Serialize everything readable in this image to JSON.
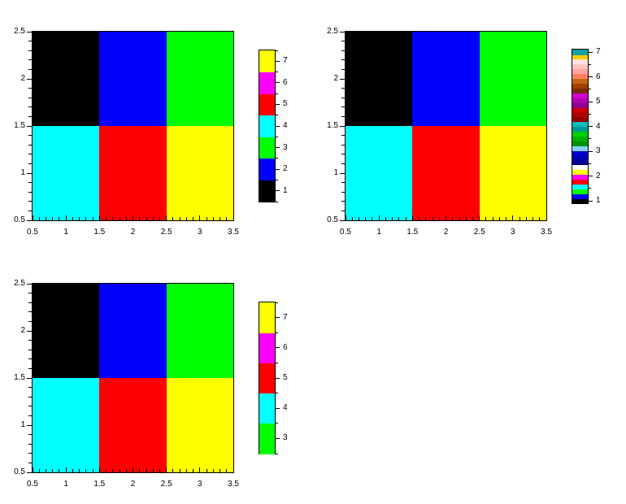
{
  "figure": {
    "background": "#FFFFFF",
    "frame_color": "#000000"
  },
  "heatmap": {
    "cell_colors_top_to_bottom": [
      [
        "#000000",
        "#0000FF",
        "#00FF00"
      ],
      [
        "#00FFFF",
        "#FF0000",
        "#FFFF00"
      ]
    ]
  },
  "axes": {
    "x_tick_labels": [
      "0.5",
      "1",
      "1.5",
      "2",
      "2.5",
      "3",
      "3.5"
    ],
    "y_tick_labels_bottom_to_top": [
      "0.5",
      "1",
      "1.5",
      "2",
      "2.5"
    ]
  },
  "colorbars": [
    {
      "kind": "segments",
      "labels_bottom_to_top": [
        "1",
        "2",
        "3",
        "4",
        "5",
        "6",
        "7"
      ],
      "colors_bottom_to_top": [
        "#000000",
        "#0000FF",
        "#00FF00",
        "#00FFFF",
        "#FF0000",
        "#FF00FF",
        "#FFFF00"
      ]
    },
    {
      "kind": "stripes",
      "labels_bottom_to_top": [
        "1",
        "2",
        "3",
        "4",
        "5",
        "6",
        "7"
      ],
      "colors_bottom_to_top": [
        "#000000",
        "#0000FF",
        "#00FF00",
        "#00FFFF",
        "#FF0000",
        "#FF00FF",
        "#FFFF00",
        "#FFFFFF",
        "#000090",
        "#0000B0",
        "#0000D0",
        "#87CEFF",
        "#009000",
        "#00B000",
        "#00D000",
        "#009898",
        "#00BCBC",
        "#900000",
        "#B00000",
        "#D00000",
        "#900090",
        "#B000B0",
        "#D000D0",
        "#7C2A00",
        "#A04200",
        "#C66414",
        "#FF7F62",
        "#FFA4A0",
        "#FFC4C0",
        "#FFE2E0",
        "#FFC800",
        "#14A2A0"
      ]
    },
    {
      "kind": "segments",
      "labels_bottom_to_top": [
        "3",
        "4",
        "5",
        "6",
        "7"
      ],
      "colors_bottom_to_top": [
        "#00FF00",
        "#00FFFF",
        "#FF0000",
        "#FF00FF",
        "#FFFF00"
      ]
    }
  ],
  "chart_data": [
    {
      "type": "heatmap",
      "position": "top-left",
      "x": [
        1,
        2,
        3
      ],
      "y": [
        1,
        2
      ],
      "values_by_row_bottom_to_top": [
        [
          4,
          5,
          7
        ],
        [
          1,
          2,
          3
        ]
      ],
      "x_range": [
        0.5,
        3.5
      ],
      "y_range": [
        0.5,
        2.5
      ],
      "x_tick_labels": [
        "0.5",
        "1",
        "1.5",
        "2",
        "2.5",
        "3",
        "3.5"
      ],
      "y_tick_labels": [
        "0.5",
        "1",
        "1.5",
        "2",
        "2.5"
      ],
      "colorbar": {
        "range": [
          1,
          7
        ],
        "tick_labels": [
          "1",
          "2",
          "3",
          "4",
          "5",
          "6",
          "7"
        ],
        "colors": [
          "#000000",
          "#0000FF",
          "#00FF00",
          "#00FFFF",
          "#FF0000",
          "#FF00FF",
          "#FFFF00"
        ]
      }
    },
    {
      "type": "heatmap",
      "position": "top-right",
      "x": [
        1,
        2,
        3
      ],
      "y": [
        1,
        2
      ],
      "values_by_row_bottom_to_top": [
        [
          4,
          5,
          7
        ],
        [
          1,
          2,
          3
        ]
      ],
      "x_range": [
        0.5,
        3.5
      ],
      "y_range": [
        0.5,
        2.5
      ],
      "x_tick_labels": [
        "0.5",
        "1",
        "1.5",
        "2",
        "2.5",
        "3",
        "3.5"
      ],
      "y_tick_labels": [
        "0.5",
        "1",
        "1.5",
        "2",
        "2.5"
      ],
      "colorbar": {
        "range": [
          1,
          7
        ],
        "tick_labels": [
          "1",
          "2",
          "3",
          "4",
          "5",
          "6",
          "7"
        ],
        "colors_count": 32,
        "note": "full default 32-color palette, stripes bottom black to top teal"
      }
    },
    {
      "type": "heatmap",
      "position": "bottom-left",
      "x": [
        1,
        2,
        3
      ],
      "y": [
        1,
        2
      ],
      "values_by_row_bottom_to_top": [
        [
          4,
          5,
          7
        ],
        [
          1,
          2,
          3
        ]
      ],
      "x_range": [
        0.5,
        3.5
      ],
      "y_range": [
        0.5,
        2.5
      ],
      "x_tick_labels": [
        "0.5",
        "1",
        "1.5",
        "2",
        "2.5",
        "3",
        "3.5"
      ],
      "y_tick_labels": [
        "0.5",
        "1",
        "1.5",
        "2",
        "2.5"
      ],
      "colorbar": {
        "range": [
          3,
          7
        ],
        "tick_labels": [
          "3",
          "4",
          "5",
          "6",
          "7"
        ],
        "colors": [
          "#00FF00",
          "#00FFFF",
          "#FF0000",
          "#FF00FF",
          "#FFFF00"
        ]
      }
    }
  ]
}
